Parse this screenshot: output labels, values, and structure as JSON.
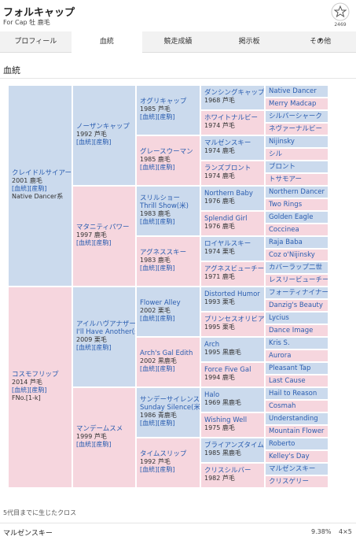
{
  "header": {
    "title": "フォルキャップ",
    "subtitle": "For Cap 牡 鹿毛",
    "favorite_count": "2469"
  },
  "tabs": [
    "プロフィール",
    "血統",
    "競走成績",
    "掲示板",
    "その他"
  ],
  "section_title": "血統",
  "pedigree": {
    "generations": [
      [
        {
          "name": "クレイドルサイアー",
          "info": "2001 鹿毛",
          "links": [
            "[血統]",
            "[産駒]"
          ],
          "note": "Native Dancer系"
        },
        {
          "name": "コスモフリップ",
          "info": "2014 芦毛",
          "links": [
            "[血統]",
            "[産駒]"
          ],
          "note": "FNo.[1-k]"
        }
      ],
      [
        {
          "name": "ノーザンキャップ",
          "info": "1992 芦毛",
          "links": [
            "[血統]",
            "[産駒]"
          ]
        },
        {
          "name": "マタニティパワー",
          "info": "1997 鹿毛",
          "links": [
            "[血統]",
            "[産駒]"
          ]
        },
        {
          "name": "アイルハヴアナザー",
          "name_en": "I'll Have Another(米)",
          "info": "2009 栗毛",
          "links": [
            "[血統]",
            "[産駒]"
          ]
        },
        {
          "name": "マンデームスメ",
          "info": "1999 芦毛",
          "links": [
            "[血統]",
            "[産駒]"
          ]
        }
      ],
      [
        {
          "name": "オグリキャップ",
          "info": "1985 芦毛",
          "links": [
            "[血統]",
            "[産駒]"
          ]
        },
        {
          "name": "グレースウーマン",
          "info": "1985 鹿毛",
          "links": [
            "[血統]",
            "[産駒]"
          ]
        },
        {
          "name": "スリルショー",
          "name_en": "Thrill Show(米)",
          "info": "1983 鹿毛",
          "links": [
            "[血統]",
            "[産駒]"
          ]
        },
        {
          "name": "アグネススキー",
          "info": "1983 鹿毛",
          "links": [
            "[血統]",
            "[産駒]"
          ]
        },
        {
          "name": "Flower Alley",
          "info": "2002 栗毛",
          "links": [
            "[血統]",
            "[産駒]"
          ]
        },
        {
          "name": "Arch's Gal Edith",
          "info": "2002 黒鹿毛",
          "links": [
            "[血統]",
            "[産駒]"
          ]
        },
        {
          "name": "サンデーサイレンス",
          "name_en": "Sunday Silence(米)",
          "info": "1986 青鹿毛",
          "links": [
            "[血統]",
            "[産駒]"
          ]
        },
        {
          "name": "タイムスリップ",
          "info": "1992 芦毛",
          "links": [
            "[血統]",
            "[産駒]"
          ]
        }
      ],
      [
        {
          "name": "ダンシングキャップ",
          "info": "1968 芦毛"
        },
        {
          "name": "ホワイトナルビー",
          "info": "1974 芦毛"
        },
        {
          "name": "マルゼンスキー",
          "info": "1974 鹿毛"
        },
        {
          "name": "ランズブロント",
          "info": "1974 鹿毛"
        },
        {
          "name": "Northern Baby",
          "info": "1976 鹿毛"
        },
        {
          "name": "Splendid Girl",
          "info": "1976 鹿毛"
        },
        {
          "name": "ロイヤルスキー",
          "info": "1974 栗毛"
        },
        {
          "name": "アグネスビューチー",
          "info": "1971 鹿毛"
        },
        {
          "name": "Distorted Humor",
          "info": "1993 栗毛"
        },
        {
          "name": "プリンセスオリビア",
          "info": "1995 栗毛"
        },
        {
          "name": "Arch",
          "info": "1995 黒鹿毛"
        },
        {
          "name": "Force Five Gal",
          "info": "1994 鹿毛"
        },
        {
          "name": "Halo",
          "info": "1969 黒鹿毛"
        },
        {
          "name": "Wishing Well",
          "info": "1975 鹿毛"
        },
        {
          "name": "ブライアンズタイム",
          "info": "1985 黒鹿毛"
        },
        {
          "name": "クリスシルバー",
          "info": "1982 芦毛"
        }
      ],
      [
        {
          "name": "Native Dancer"
        },
        {
          "name": "Merry Madcap"
        },
        {
          "name": "シルバーシャーク"
        },
        {
          "name": "ネヴァーナルビー"
        },
        {
          "name": "Nijinsky"
        },
        {
          "name": "シル"
        },
        {
          "name": "ブロント"
        },
        {
          "name": "トサモアー"
        },
        {
          "name": "Northern Dancer"
        },
        {
          "name": "Two Rings"
        },
        {
          "name": "Golden Eagle"
        },
        {
          "name": "Coccinea"
        },
        {
          "name": "Raja Baba"
        },
        {
          "name": "Coz o'Nijinsky"
        },
        {
          "name": "カバーラップ二世"
        },
        {
          "name": "レスリービューチー"
        },
        {
          "name": "フォーティナイナー"
        },
        {
          "name": "Danzig's Beauty"
        },
        {
          "name": "Lycius"
        },
        {
          "name": "Dance Image"
        },
        {
          "name": "Kris S."
        },
        {
          "name": "Aurora"
        },
        {
          "name": "Pleasant Tap"
        },
        {
          "name": "Last Cause"
        },
        {
          "name": "Hail to Reason"
        },
        {
          "name": "Cosmah"
        },
        {
          "name": "Understanding"
        },
        {
          "name": "Mountain Flower"
        },
        {
          "name": "Roberto"
        },
        {
          "name": "Kelley's Day"
        },
        {
          "name": "マルゼンスキー"
        },
        {
          "name": "クリスゲリー"
        }
      ]
    ]
  },
  "cross": {
    "title": "5代目までに生じたクロス",
    "rows": [
      {
        "name": "マルゼンスキー",
        "percent": "9.38%",
        "pattern": "4×5"
      }
    ]
  }
}
